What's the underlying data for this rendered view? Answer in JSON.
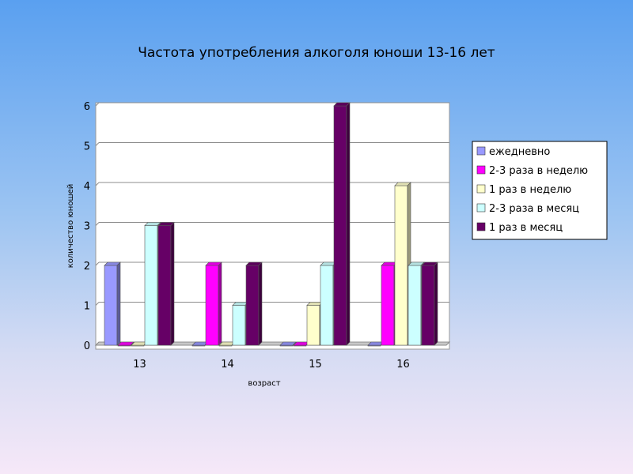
{
  "chart_data": {
    "type": "bar",
    "title": "Частота употребления алкоголя юноши 13-16 лет",
    "xlabel": "возраст",
    "ylabel": "количество юношей",
    "categories": [
      "13",
      "14",
      "15",
      "16"
    ],
    "ylim": [
      0,
      6
    ],
    "yticks": [
      "0",
      "1",
      "2",
      "3",
      "4",
      "5",
      "6"
    ],
    "grid": true,
    "legend_position": "right",
    "series": [
      {
        "name": "ежедневно",
        "values": [
          2,
          0,
          0,
          0
        ],
        "color": "#9999ff"
      },
      {
        "name": "2-3 раза в неделю",
        "values": [
          0,
          2,
          0,
          2
        ],
        "color": "#ff00ff"
      },
      {
        "name": "1 раз в неделю",
        "values": [
          0,
          0,
          1,
          4
        ],
        "color": "#ffffcc"
      },
      {
        "name": "2-3 раза в месяц",
        "values": [
          3,
          1,
          2,
          2
        ],
        "color": "#ccffff"
      },
      {
        "name": "1 раз в месяц",
        "values": [
          3,
          2,
          6,
          2
        ],
        "color": "#660066"
      }
    ]
  }
}
